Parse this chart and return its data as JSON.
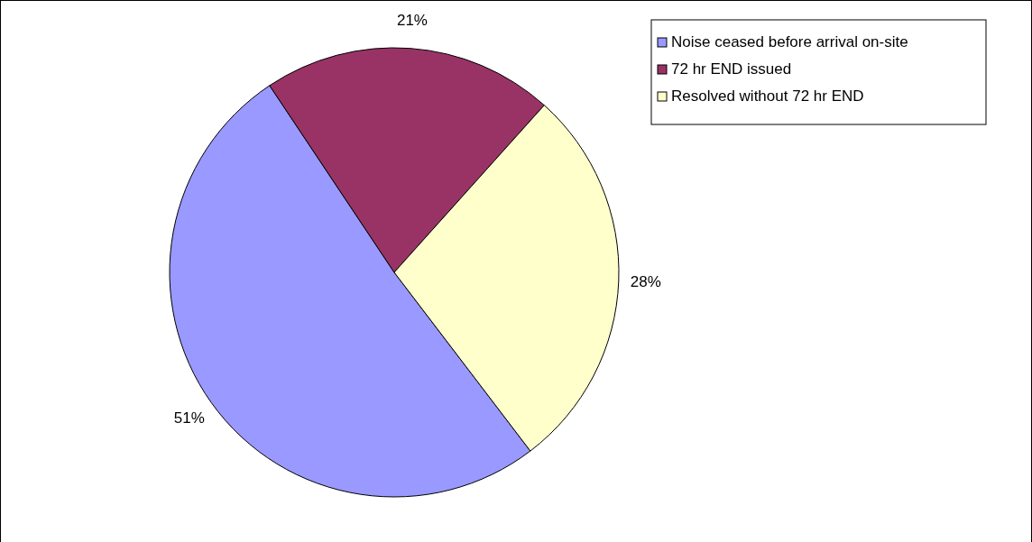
{
  "chart_data": {
    "type": "pie",
    "categories": [
      "Noise ceased before arrival on-site",
      "72 hr END issued",
      "Resolved without 72 hr END"
    ],
    "values": [
      51,
      21,
      28
    ],
    "colors": [
      "#9999ff",
      "#993366",
      "#ffffcc"
    ],
    "value_labels": [
      "51%",
      "21%",
      "28%"
    ],
    "legend": "top right"
  }
}
